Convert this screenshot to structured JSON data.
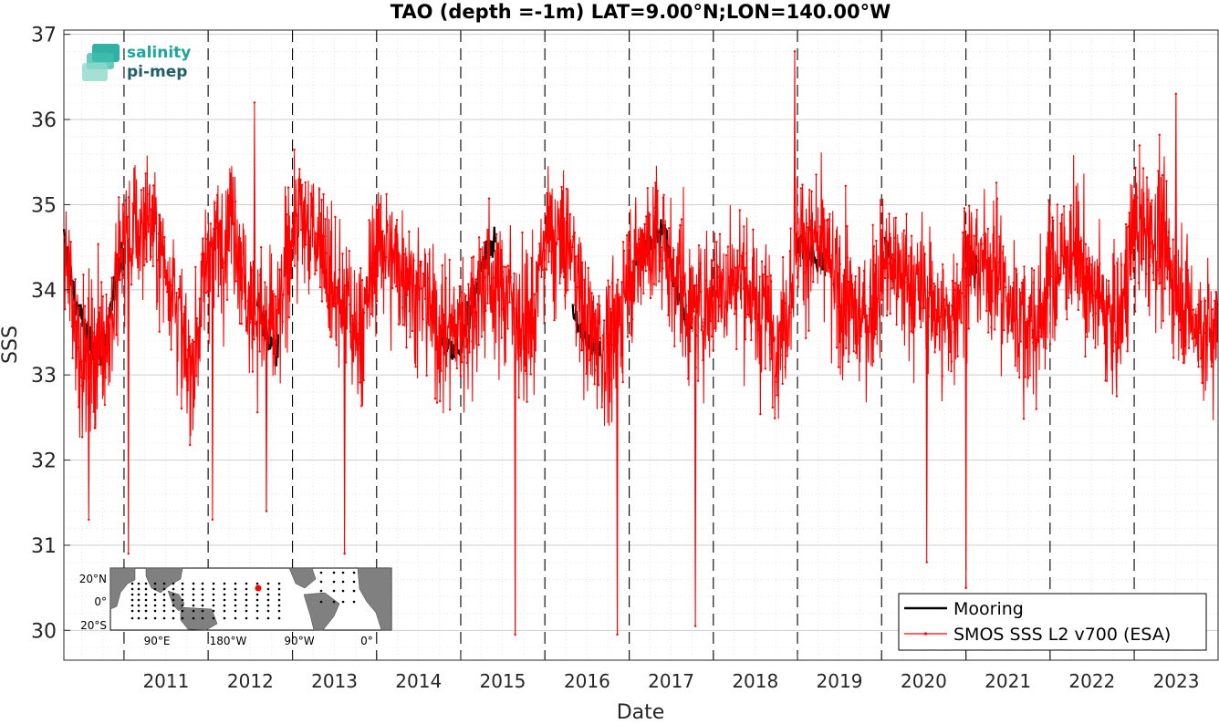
{
  "chart_data": {
    "type": "line",
    "title": "TAO (depth =-1m) LAT=9.00°N;LON=140.00°W",
    "xlabel": "Date",
    "ylabel": "SSS",
    "xlim": [
      "2010-04-15",
      "2023-12-31"
    ],
    "ylim": [
      29.65,
      37.05
    ],
    "yticks": [
      "30",
      "31",
      "32",
      "33",
      "34",
      "35",
      "36",
      "37"
    ],
    "xticks": [
      "2011",
      "2012",
      "2013",
      "2014",
      "2015",
      "2016",
      "2017",
      "2018",
      "2019",
      "2020",
      "2021",
      "2022",
      "2023"
    ],
    "grid": true,
    "year_boundaries": "dashed vertical lines at each Jan 1",
    "legend_position": "bottom-right",
    "series": [
      {
        "name": "Mooring",
        "color": "#000000",
        "marker": "none",
        "segments": [
          {
            "x": [
              "2010-04-15",
              "2010-06-01",
              "2010-08-01",
              "2010-10-01",
              "2010-12-01",
              "2011-01-01"
            ],
            "y": [
              34.6,
              33.9,
              33.4,
              33.2,
              34.2,
              34.5
            ]
          },
          {
            "x": [
              "2012-08-01",
              "2012-09-15",
              "2012-11-01"
            ],
            "y": [
              33.9,
              33.4,
              33.3
            ]
          },
          {
            "x": [
              "2014-10-01",
              "2015-01-01",
              "2015-04-01",
              "2015-06-01"
            ],
            "y": [
              33.4,
              33.3,
              34.3,
              34.6
            ]
          },
          {
            "x": [
              "2016-05-01",
              "2016-07-01",
              "2016-09-01"
            ],
            "y": [
              33.7,
              33.4,
              33.3
            ]
          },
          {
            "x": [
              "2017-02-01",
              "2017-04-01",
              "2017-06-01",
              "2017-08-01",
              "2017-10-01"
            ],
            "y": [
              34.3,
              34.5,
              34.7,
              33.9,
              33.5
            ]
          },
          {
            "x": [
              "2019-01-01",
              "2019-03-01",
              "2019-05-01"
            ],
            "y": [
              34.6,
              34.4,
              34.3
            ]
          },
          {
            "x": [
              "2020-01-15",
              "2020-02-15"
            ],
            "y": [
              34.5,
              34.4
            ]
          },
          {
            "x": [
              "2021-01-01",
              "2021-02-15"
            ],
            "y": [
              34.4,
              34.2
            ]
          }
        ]
      },
      {
        "name": "SMOS SSS L2 v700 (ESA)",
        "color": "#ff0000",
        "marker": "dot",
        "x": [
          "2010-04-15",
          "2010-07-15",
          "2010-10-15",
          "2011-01-15",
          "2011-04-15",
          "2011-07-15",
          "2011-10-15",
          "2012-01-15",
          "2012-04-15",
          "2012-07-15",
          "2012-10-15",
          "2013-01-15",
          "2013-04-15",
          "2013-07-15",
          "2013-10-15",
          "2014-01-15",
          "2014-04-15",
          "2014-07-15",
          "2014-10-15",
          "2015-01-15",
          "2015-04-15",
          "2015-07-15",
          "2015-10-15",
          "2016-01-15",
          "2016-04-15",
          "2016-07-15",
          "2016-10-15",
          "2017-01-15",
          "2017-04-15",
          "2017-07-15",
          "2017-10-15",
          "2018-01-15",
          "2018-04-15",
          "2018-07-15",
          "2018-10-15",
          "2019-01-15",
          "2019-04-15",
          "2019-07-15",
          "2019-10-15",
          "2020-01-15",
          "2020-04-15",
          "2020-07-15",
          "2020-10-15",
          "2021-01-15",
          "2021-04-15",
          "2021-07-15",
          "2021-10-15",
          "2022-01-15",
          "2022-04-15",
          "2022-07-15",
          "2022-10-15",
          "2023-01-15",
          "2023-04-15",
          "2023-07-15",
          "2023-10-15",
          "2023-12-31"
        ],
        "y": [
          34.3,
          33.2,
          33.5,
          34.6,
          34.8,
          34.2,
          33.1,
          34.5,
          34.8,
          33.7,
          33.5,
          34.8,
          34.7,
          33.9,
          33.5,
          34.5,
          34.3,
          33.9,
          33.5,
          33.6,
          34.1,
          34.0,
          33.5,
          34.6,
          34.5,
          33.5,
          33.3,
          34.3,
          34.6,
          34.2,
          33.7,
          34.0,
          34.2,
          33.8,
          33.5,
          34.6,
          34.4,
          33.9,
          33.6,
          34.3,
          34.1,
          33.9,
          33.6,
          34.3,
          34.3,
          33.8,
          33.5,
          34.2,
          34.5,
          33.9,
          33.6,
          34.7,
          34.6,
          34.0,
          33.5,
          33.5
        ],
        "noise_std": 0.6,
        "outliers": [
          {
            "x": "2010-08-01",
            "y": 31.3
          },
          {
            "x": "2011-01-20",
            "y": 30.9
          },
          {
            "x": "2012-01-20",
            "y": 31.3
          },
          {
            "x": "2012-07-20",
            "y": 36.2
          },
          {
            "x": "2012-09-10",
            "y": 31.4
          },
          {
            "x": "2013-08-15",
            "y": 30.9
          },
          {
            "x": "2015-08-25",
            "y": 29.95
          },
          {
            "x": "2016-11-10",
            "y": 29.95
          },
          {
            "x": "2017-10-15",
            "y": 30.05
          },
          {
            "x": "2018-12-20",
            "y": 36.8
          },
          {
            "x": "2020-07-15",
            "y": 30.8
          },
          {
            "x": "2021-01-01",
            "y": 30.5
          },
          {
            "x": "2023-07-01",
            "y": 36.3
          }
        ]
      }
    ]
  },
  "logo": {
    "line1": "salinity",
    "line2": "pi-mep",
    "color1": "#1ba89a",
    "color2": "#1f5f6b"
  },
  "inset_map": {
    "lat_labels": [
      "20°N",
      "0°",
      "20°S"
    ],
    "lon_labels": [
      "90°E",
      "180°W",
      "90°W",
      "0°"
    ],
    "land_color": "#808080",
    "highlight_color": "#ff0000"
  }
}
